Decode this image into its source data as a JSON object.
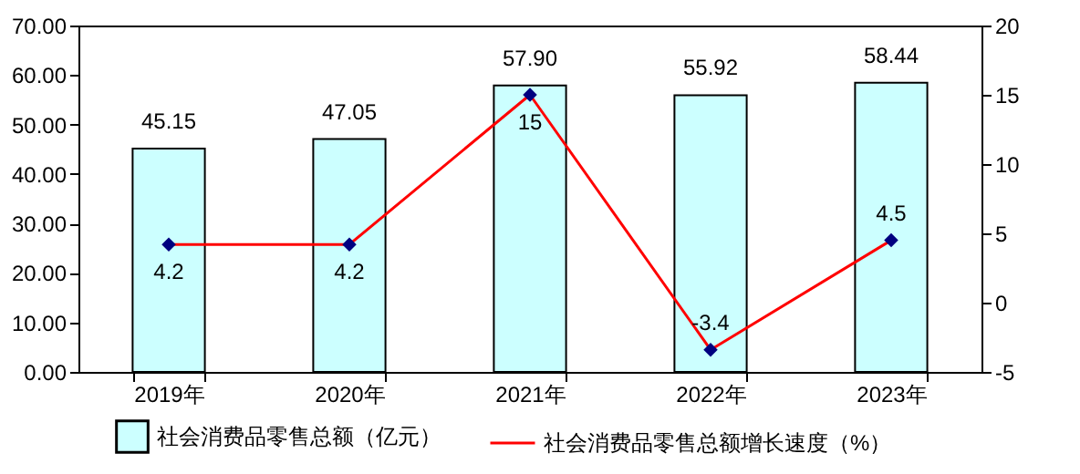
{
  "chart_data": {
    "type": "bar",
    "categories": [
      "2019年",
      "2020年",
      "2021年",
      "2022年",
      "2023年"
    ],
    "series": [
      {
        "name": "社会消费品零售总额（亿元）",
        "color": "#ccffff",
        "values": [
          45.15,
          47.05,
          57.9,
          55.92,
          58.44
        ],
        "value_labels": [
          "45.15",
          "47.05",
          "57.90",
          "55.92",
          "58.44"
        ]
      },
      {
        "name": "社会消费品零售总额增长速度（%）",
        "type": "line",
        "axis": "y2",
        "color": "#ff0000",
        "values": [
          4.2,
          4.2,
          15,
          -3.4,
          4.5
        ],
        "value_labels": [
          "4.2",
          "4.2",
          "15",
          "-3.4",
          "4.5"
        ]
      }
    ],
    "ylim": [
      0,
      70
    ],
    "yticks": [
      {
        "value": 0,
        "label": "0.00"
      },
      {
        "value": 10,
        "label": "10.00"
      },
      {
        "value": 20,
        "label": "20.00"
      },
      {
        "value": 30,
        "label": "30.00"
      },
      {
        "value": 40,
        "label": "40.00"
      },
      {
        "value": 50,
        "label": "50.00"
      },
      {
        "value": 60,
        "label": "60.00"
      },
      {
        "value": 70,
        "label": "70.00"
      }
    ],
    "y2lim": [
      -5,
      20
    ],
    "y2ticks": [
      -5,
      0,
      5,
      10,
      15,
      20
    ],
    "marker": "diamond",
    "grid": false,
    "legend": "bottom"
  }
}
